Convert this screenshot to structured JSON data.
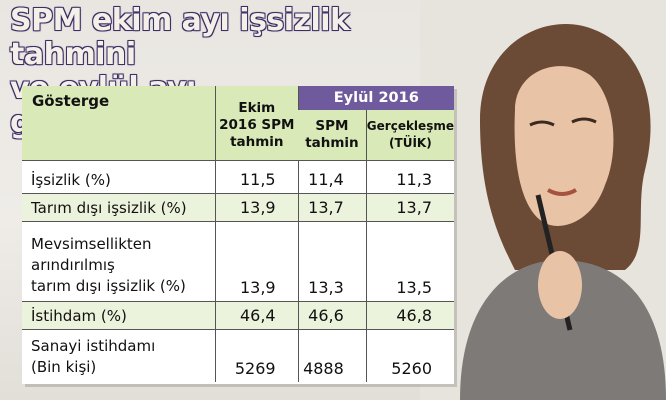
{
  "title": {
    "line1": "SPM ekim ayı işsizlik tahmini",
    "line2": "ve eylül ayı gerçekleşmeleri"
  },
  "chart_data": {
    "type": "table",
    "title": "SPM ekim ayı işsizlik tahmini ve eylül ayı gerçekleşmeleri",
    "header": {
      "indicator": "Gösterge",
      "ekim_line1": "Ekim",
      "ekim_line2": "2016 SPM",
      "ekim_line3": "tahmin",
      "eylul_group": "Eylül 2016",
      "spm_line1": "SPM",
      "spm_line2": "tahmin",
      "tuik_line1": "Gerçekleşme",
      "tuik_line2": "(TÜİK)"
    },
    "rows": [
      {
        "label_lines": [
          "İşsizlik (%)"
        ],
        "ekim_spm": "11,5",
        "eylul_spm": "11,4",
        "eylul_tuik": "11,3"
      },
      {
        "label_lines": [
          "Tarım dışı işsizlik (%)"
        ],
        "ekim_spm": "13,9",
        "eylul_spm": "13,7",
        "eylul_tuik": "13,7"
      },
      {
        "label_lines": [
          "Mevsimsellikten",
          "arındırılmış",
          "tarım dışı işsizlik (%)"
        ],
        "ekim_spm": "13,9",
        "eylul_spm": "13,3",
        "eylul_tuik": "13,5"
      },
      {
        "label_lines": [
          "İstihdam (%)"
        ],
        "ekim_spm": "46,4",
        "eylul_spm": "46,6",
        "eylul_tuik": "46,8"
      },
      {
        "label_lines": [
          "Sanayi istihdamı",
          "(Bin kişi)"
        ],
        "ekim_spm": "5269",
        "eylul_spm": "4888",
        "eylul_tuik": "5260"
      }
    ],
    "colors": {
      "header_green": "#d9e9b7",
      "header_purple": "#6f5a9e",
      "row_band": "#ecf3dc",
      "title_fill": "#f4f0e8",
      "title_outline": "#3a2f66"
    }
  }
}
